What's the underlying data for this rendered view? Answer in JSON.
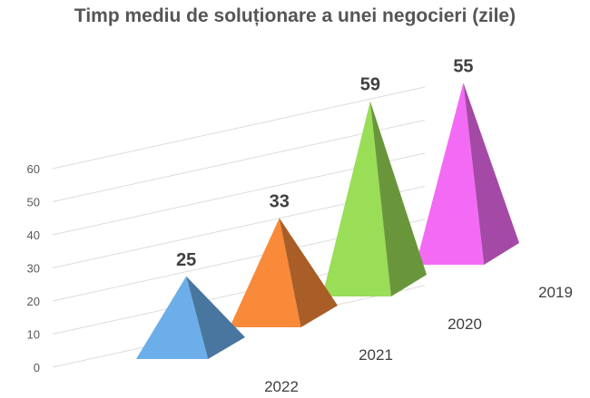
{
  "chart_data": {
    "type": "bar",
    "style": "3d-pyramid",
    "title": "Timp mediu de soluționare a unei negocieri (zile)",
    "categories": [
      "2022",
      "2021",
      "2020",
      "2019"
    ],
    "values": [
      25,
      33,
      59,
      55
    ],
    "data_labels": [
      "25",
      "33",
      "59",
      "55"
    ],
    "yticks": [
      "0",
      "10",
      "20",
      "30",
      "40",
      "50",
      "60"
    ],
    "ylim": [
      0,
      60
    ],
    "grid": true,
    "legend": "none",
    "colors": {
      "2022": "#6CAEEA",
      "2021": "#F88A3A",
      "2020": "#9ADD57",
      "2019": "#F36BF5",
      "grid": "#DCDCDC",
      "text": "#404040",
      "title": "#555555"
    }
  }
}
